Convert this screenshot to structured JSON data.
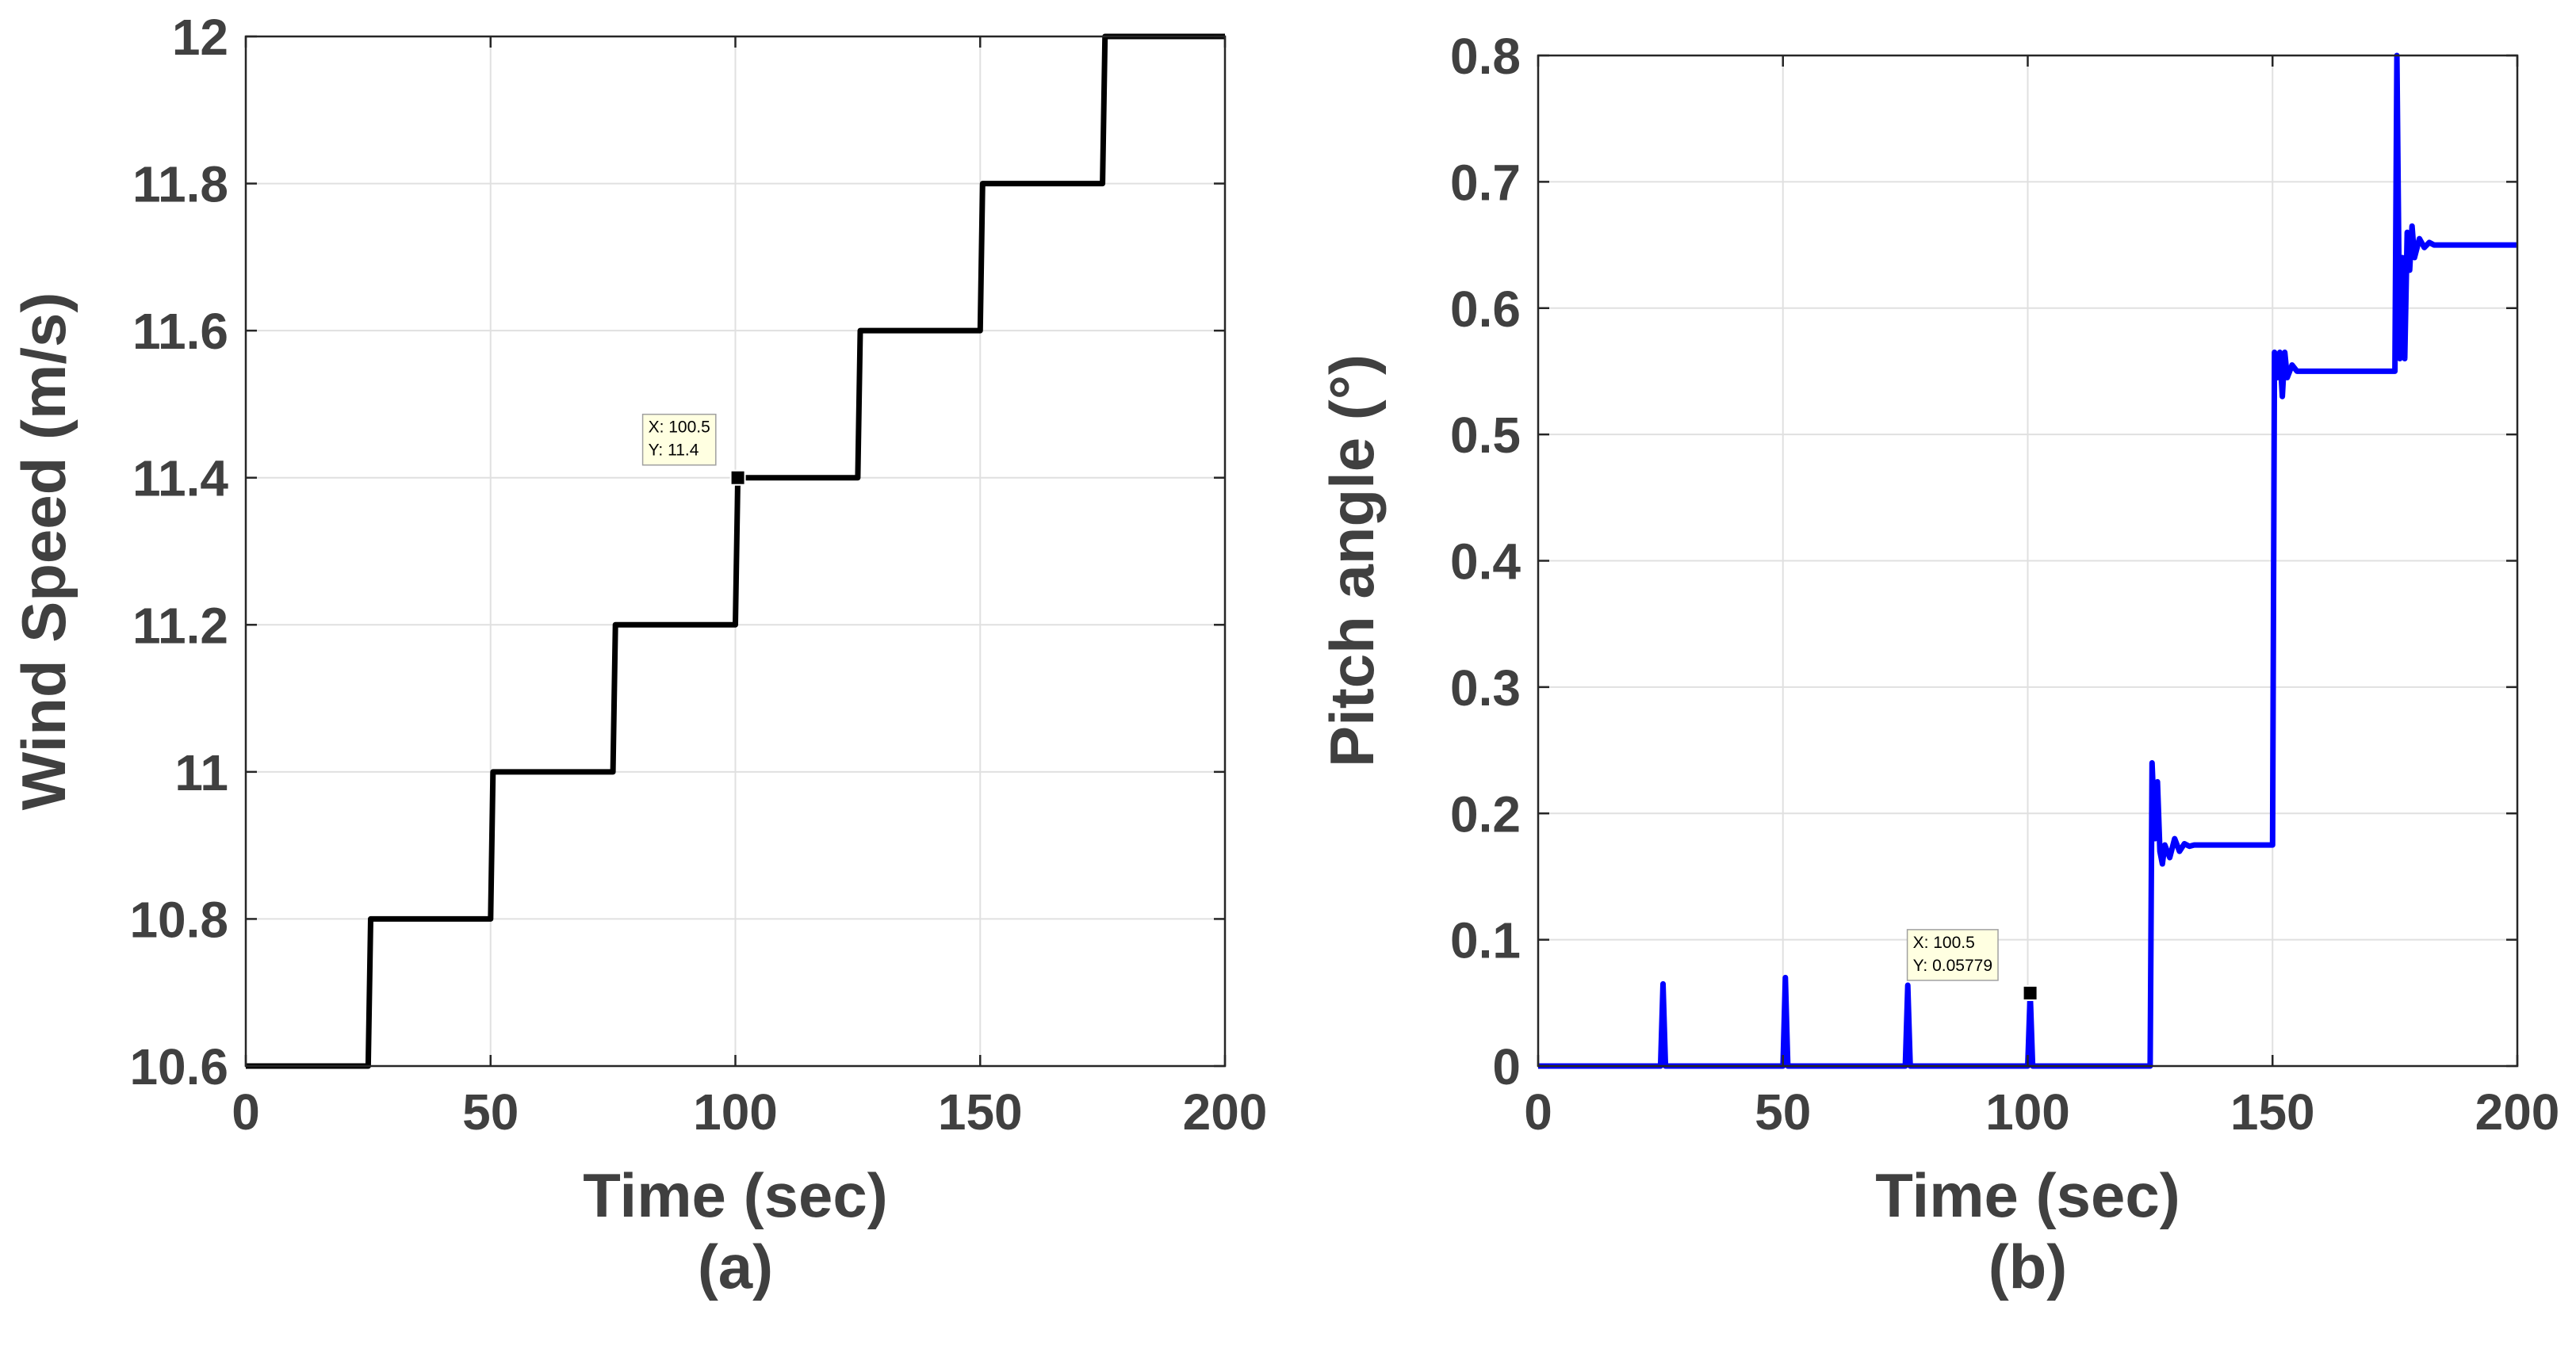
{
  "colors": {
    "line_a": "#000000",
    "line_b": "#0000ff",
    "text": "#404040",
    "grid": "#e0e0e0",
    "tip_bg": "#ffffe1"
  },
  "chart_data": [
    {
      "id": "a",
      "type": "line",
      "caption": "(a)",
      "xlabel": "Time (sec)",
      "ylabel": "Wind Speed (m/s)",
      "xlim": [
        0,
        200
      ],
      "ylim": [
        10.6,
        12
      ],
      "xticks": [
        0,
        50,
        100,
        150,
        200
      ],
      "xtick_labels": [
        "0",
        "50",
        "100",
        "150",
        "200"
      ],
      "yticks": [
        10.6,
        10.8,
        11,
        11.2,
        11.4,
        11.6,
        11.8,
        12
      ],
      "ytick_labels": [
        "10.6",
        "10.8",
        "11",
        "11.2",
        "11.4",
        "11.6",
        "11.8",
        "12"
      ],
      "grid": true,
      "series": [
        {
          "name": "Wind Speed",
          "color": "#000000",
          "x": [
            0,
            25,
            25.5,
            50,
            50.5,
            75,
            75.5,
            100,
            100.5,
            125,
            125.5,
            150,
            150.5,
            175,
            175.5,
            200
          ],
          "y": [
            10.6,
            10.6,
            10.8,
            10.8,
            11.0,
            11.0,
            11.2,
            11.2,
            11.4,
            11.4,
            11.6,
            11.6,
            11.8,
            11.8,
            12.0,
            12.0
          ]
        }
      ],
      "datatip": {
        "x": 100.5,
        "y": 11.4,
        "line1": "X: 100.5",
        "line2": "Y: 11.4"
      }
    },
    {
      "id": "b",
      "type": "line",
      "caption": "(b)",
      "xlabel": "Time (sec)",
      "ylabel": "Pitch angle (°)",
      "xlim": [
        0,
        200
      ],
      "ylim": [
        0,
        0.8
      ],
      "xticks": [
        0,
        50,
        100,
        150,
        200
      ],
      "xtick_labels": [
        "0",
        "50",
        "100",
        "150",
        "200"
      ],
      "yticks": [
        0,
        0.1,
        0.2,
        0.3,
        0.4,
        0.5,
        0.6,
        0.7,
        0.8
      ],
      "ytick_labels": [
        "0",
        "0.1",
        "0.2",
        "0.3",
        "0.4",
        "0.5",
        "0.6",
        "0.7",
        "0.8"
      ],
      "grid": true,
      "series": [
        {
          "name": "Pitch angle",
          "color": "#0000ff",
          "x": [
            0,
            25,
            25.5,
            26,
            50,
            50.5,
            51,
            75,
            75.5,
            76,
            100,
            100.5,
            101,
            125,
            125.4,
            126,
            126.5,
            127,
            127.5,
            128,
            129,
            130,
            131,
            132,
            133,
            134,
            135,
            150,
            150.4,
            151,
            151.5,
            152,
            152.5,
            153,
            154,
            155,
            175,
            175.4,
            176,
            176.5,
            177,
            177.5,
            178,
            178.5,
            179,
            180,
            181,
            182,
            183,
            200
          ],
          "y": [
            0,
            0,
            0.065,
            0,
            0,
            0.07,
            0,
            0,
            0.064,
            0,
            0,
            0.058,
            0,
            0,
            0.24,
            0.18,
            0.225,
            0.17,
            0.16,
            0.175,
            0.165,
            0.18,
            0.17,
            0.176,
            0.174,
            0.175,
            0.175,
            0.175,
            0.565,
            0.545,
            0.565,
            0.53,
            0.565,
            0.545,
            0.555,
            0.55,
            0.55,
            0.8,
            0.56,
            0.64,
            0.56,
            0.66,
            0.63,
            0.665,
            0.64,
            0.655,
            0.648,
            0.652,
            0.65,
            0.65
          ]
        }
      ],
      "datatip": {
        "x": 100.5,
        "y": 0.05779,
        "line1": "X: 100.5",
        "line2": "Y: 0.05779"
      }
    }
  ]
}
